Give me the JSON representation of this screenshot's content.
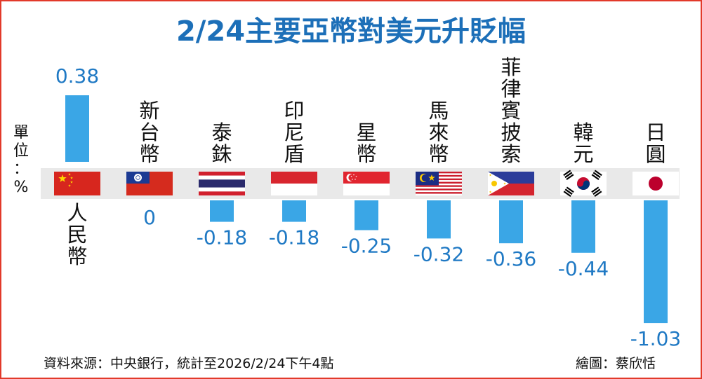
{
  "title": "2/24主要亞幣對美元升貶幅",
  "unit_label": "單位：%",
  "source": "資料來源：中央銀行，統計至2026/2/24下午4點",
  "credit": "繪圖：蔡欣恬",
  "colors": {
    "frame": "#e23a2a",
    "title": "#1c6fb8",
    "bar": "#3aa6e6",
    "value_text": "#1f79c4",
    "band": "#e9e9e9",
    "label_text": "#111111"
  },
  "chart_data": {
    "type": "bar",
    "title": "2/24主要亞幣對美元升貶幅",
    "ylabel": "單位：%",
    "categories": [
      "人民幣",
      "新台幣",
      "泰銖",
      "印尼盾",
      "星幣",
      "馬來幣",
      "菲律賓披索",
      "韓元",
      "日圓"
    ],
    "values": [
      0.38,
      0,
      -0.18,
      -0.18,
      -0.25,
      -0.32,
      -0.36,
      -0.44,
      -1.03
    ],
    "value_labels": [
      "0.38",
      "0",
      "-0.18",
      "-0.18",
      "-0.25",
      "-0.32",
      "-0.36",
      "-0.44",
      "-1.03"
    ],
    "flags": [
      "china-flag",
      "taiwan-flag",
      "thailand-flag",
      "indonesia-flag",
      "singapore-flag",
      "malaysia-flag",
      "philippines-flag",
      "south-korea-flag",
      "japan-flag"
    ],
    "ylim": [
      -1.03,
      0.38
    ],
    "grid": false,
    "legend": "none"
  }
}
